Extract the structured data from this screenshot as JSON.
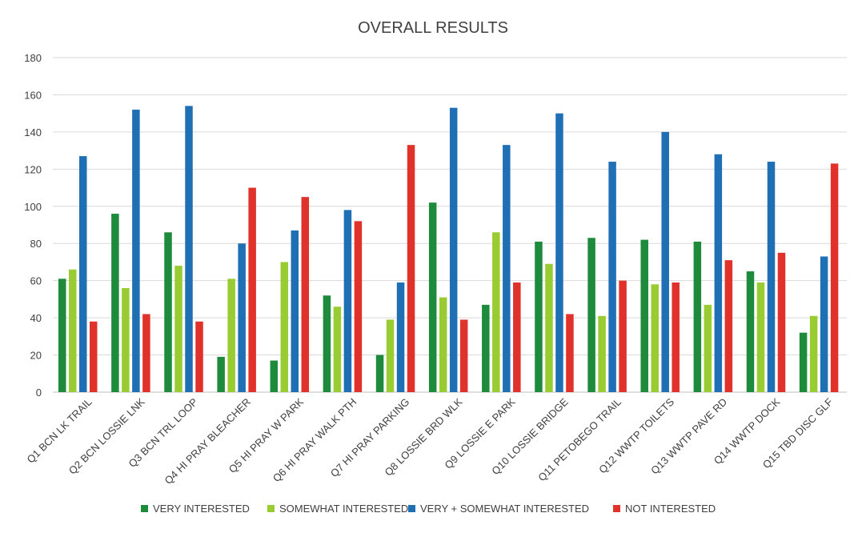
{
  "chart_data": {
    "type": "bar",
    "title": "OVERALL RESULTS",
    "xlabel": "",
    "ylabel": "",
    "ylim": [
      0,
      180
    ],
    "yticks": [
      0,
      20,
      40,
      60,
      80,
      100,
      120,
      140,
      160,
      180
    ],
    "grid": true,
    "legend_position": "bottom",
    "categories": [
      "Q1 BCN LK TRAIL",
      "Q2 BCN LOSSIE LNK",
      "Q3 BCN TRL LOOP",
      "Q4 HI PRAY BLEACHER",
      "Q5 HI PRAY W PARK",
      "Q6 HI PRAY WALK PTH",
      "Q7 HI PRAY PARKING",
      "Q8 LOSSIE BRD WLK",
      "Q9 LOSSIE E PARK",
      "Q10 LOSSIE BRIDGE",
      "Q11 PETOBEGO TRAIL",
      "Q12 WWTP TOILETS",
      "Q13 WWTP PAVE RD",
      "Q14 WWTP DOCK",
      "Q15 TBD DISC GLF"
    ],
    "series": [
      {
        "name": "VERY INTERESTED",
        "color": "#1e8a3c",
        "values": [
          61,
          96,
          86,
          19,
          17,
          52,
          20,
          102,
          47,
          81,
          83,
          82,
          81,
          65,
          32
        ]
      },
      {
        "name": "SOMEWHAT INTERESTED",
        "color": "#99cc33",
        "values": [
          66,
          56,
          68,
          61,
          70,
          46,
          39,
          51,
          86,
          69,
          41,
          58,
          47,
          59,
          41
        ]
      },
      {
        "name": "VERY + SOMEWHAT INTERESTED",
        "color": "#1f6fb5",
        "values": [
          127,
          152,
          154,
          80,
          87,
          98,
          59,
          153,
          133,
          150,
          124,
          140,
          128,
          124,
          73
        ]
      },
      {
        "name": "NOT INTERESTED",
        "color": "#e0312b",
        "values": [
          38,
          42,
          38,
          110,
          105,
          92,
          133,
          39,
          59,
          42,
          60,
          59,
          71,
          75,
          123
        ]
      }
    ]
  }
}
